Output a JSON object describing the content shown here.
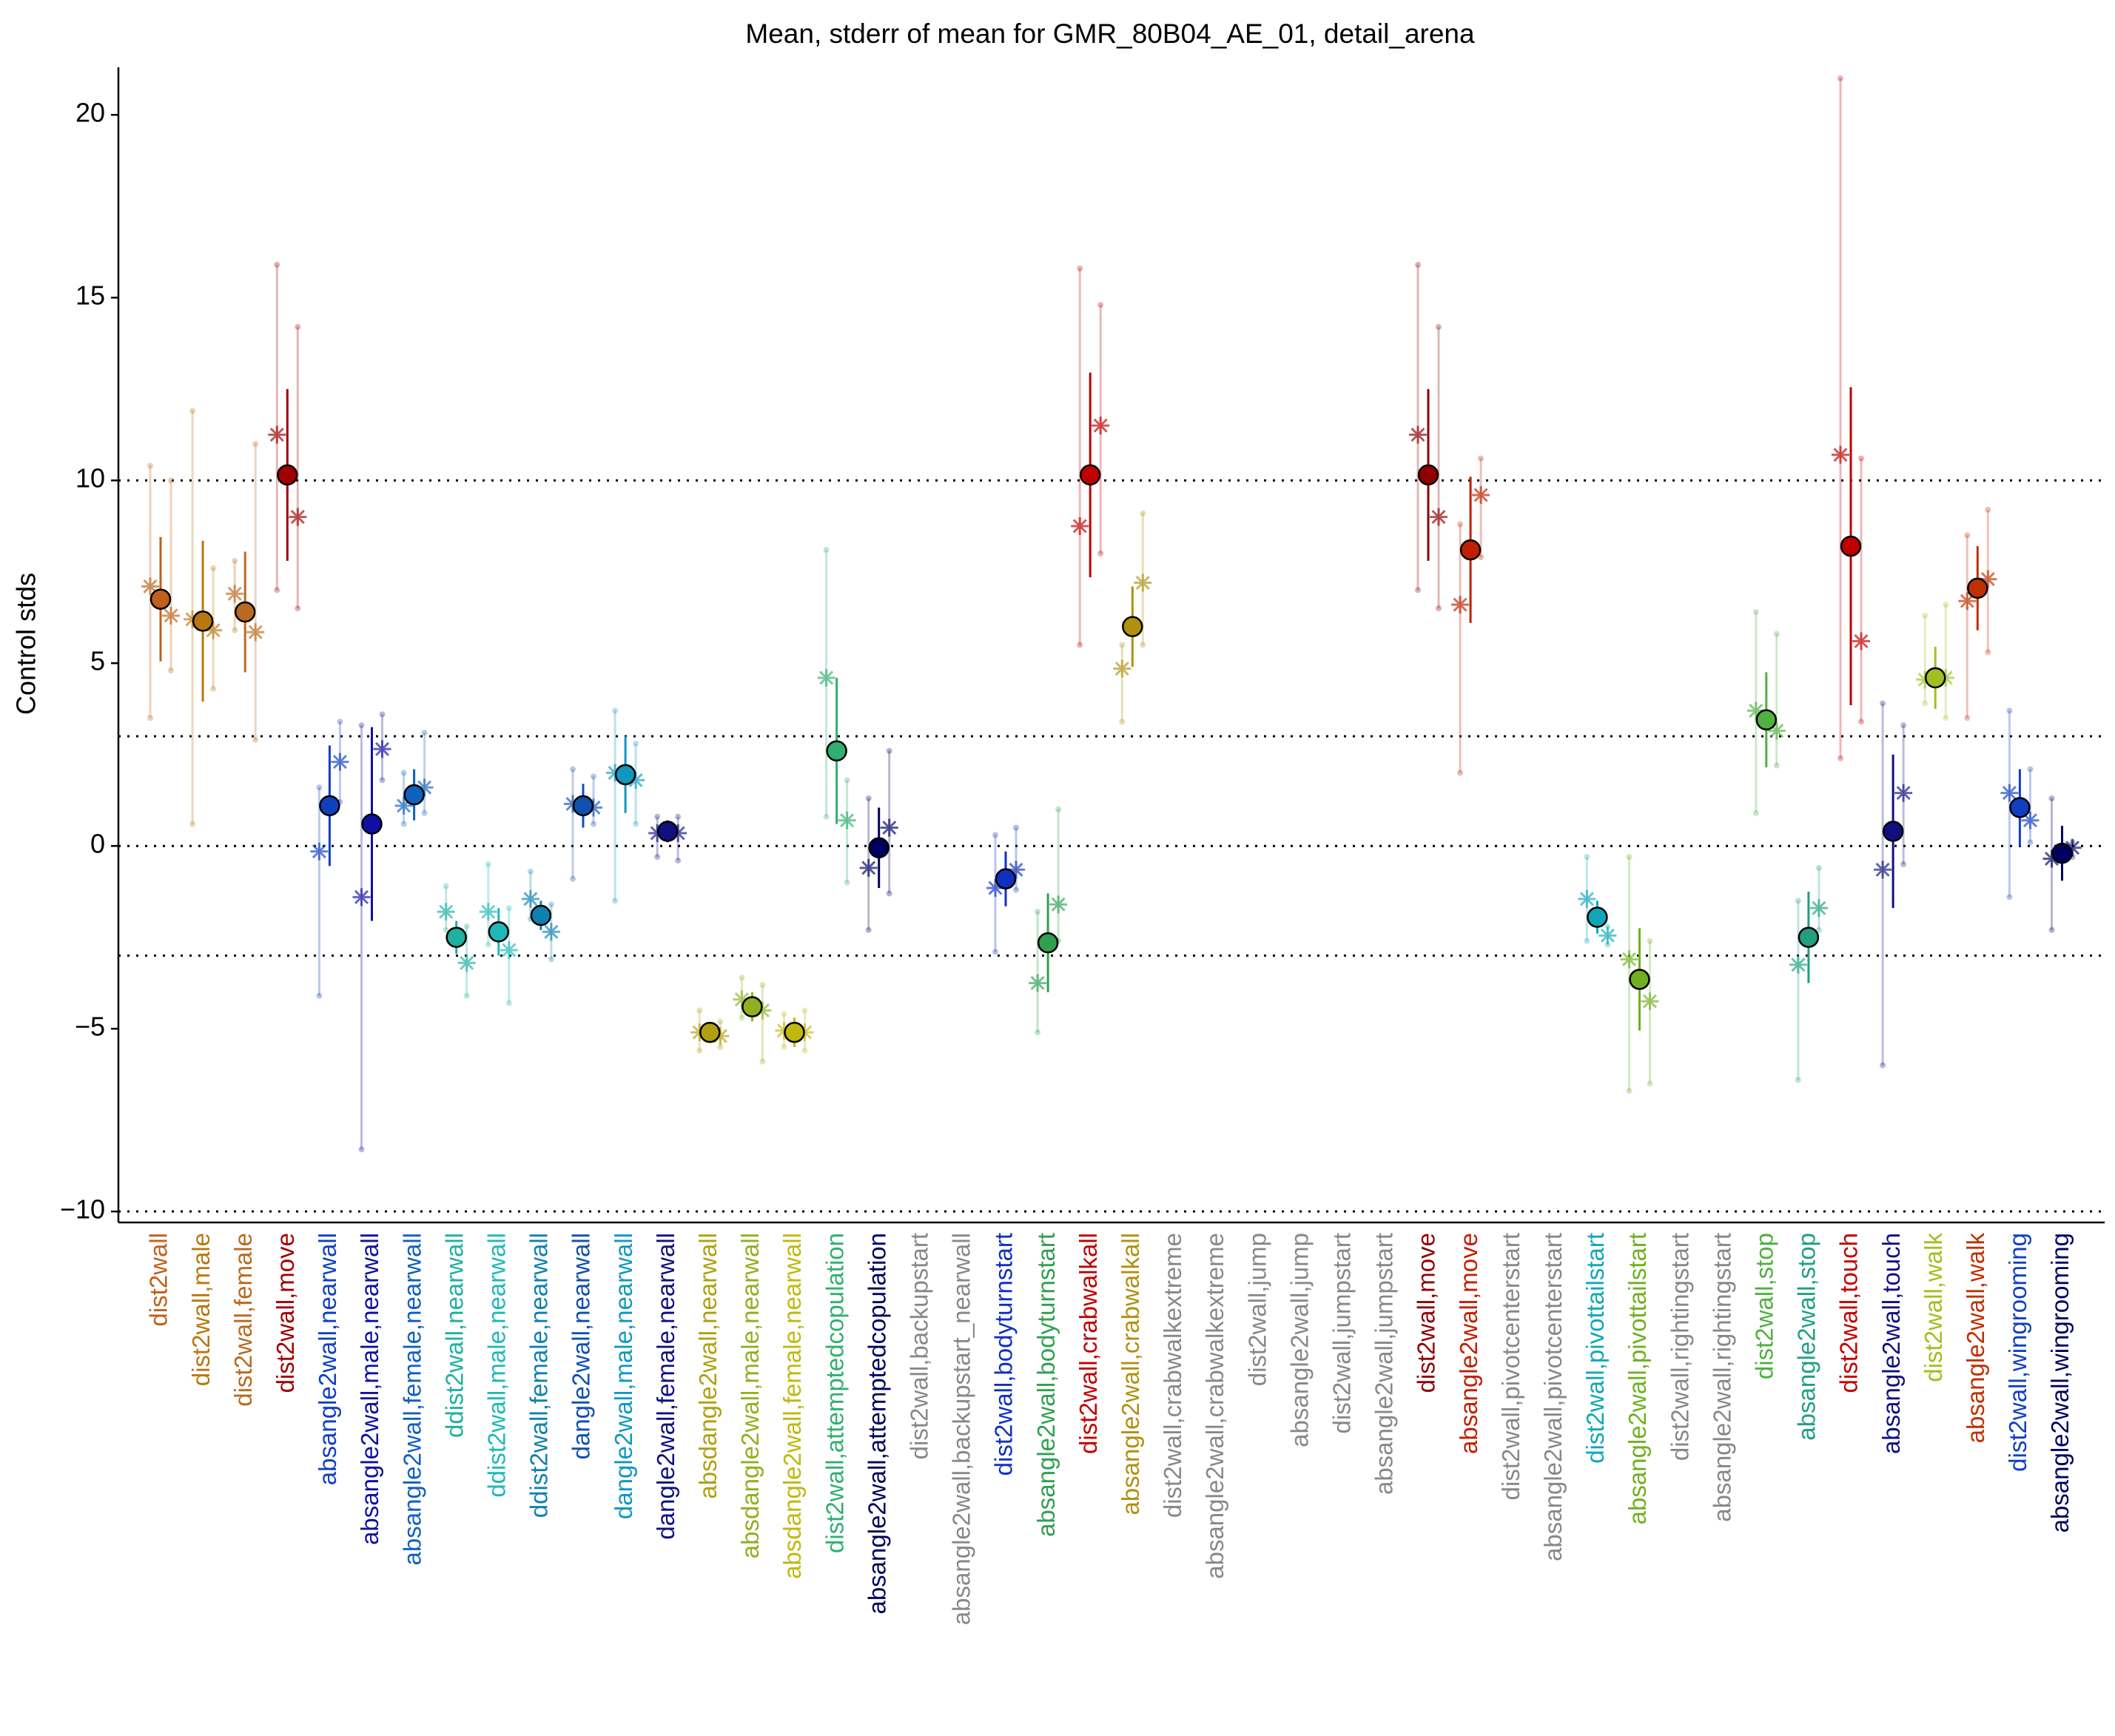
{
  "chart_data": {
    "type": "dotplot",
    "title": "Mean, stderr of mean for GMR_80B04_AE_01, detail_arena",
    "y_label": "Control stds",
    "ylim": [
      -10.3,
      21.3
    ],
    "yticks": [
      {
        "value": -10,
        "label": "−10"
      },
      {
        "value": -5,
        "label": "−5"
      },
      0,
      5,
      10,
      15,
      20
    ],
    "hlines": [
      -10,
      -3,
      0,
      3,
      10
    ],
    "categories": [
      "dist2wall",
      "dist2wall,male",
      "dist2wall,female",
      "dist2wall,move",
      "absangle2wall,nearwall",
      "absangle2wall,male,nearwall",
      "absangle2wall,female,nearwall",
      "ddist2wall,nearwall",
      "ddist2wall,male,nearwall",
      "ddist2wall,female,nearwall",
      "dangle2wall,nearwall",
      "dangle2wall,male,nearwall",
      "dangle2wall,female,nearwall",
      "absdangle2wall,nearwall",
      "absdangle2wall,male,nearwall",
      "absdangle2wall,female,nearwall",
      "dist2wall,attemptedcopulation",
      "absangle2wall,attemptedcopulation",
      "dist2wall,backupstart",
      "absangle2wall,backupstart_nearwall",
      "dist2wall,bodyturnstart",
      "absangle2wall,bodyturnstart",
      "dist2wall,crabwalkall",
      "absangle2wall,crabwalkall",
      "dist2wall,crabwalkextreme",
      "absangle2wall,crabwalkextreme",
      "dist2wall,jump",
      "absangle2wall,jump",
      "dist2wall,jumpstart",
      "absangle2wall,jumpstart",
      "dist2wall,move",
      "absangle2wall,move",
      "dist2wall,pivotcenterstart",
      "absangle2wall,pivotcenterstart",
      "dist2wall,pivottailstart",
      "absangle2wall,pivottailstart",
      "dist2wall,rightingstart",
      "absangle2wall,rightingstart",
      "dist2wall,stop",
      "absangle2wall,stop",
      "dist2wall,touch",
      "absangle2wall,touch",
      "dist2wall,walk",
      "absangle2wall,walk",
      "dist2wall,wingrooming",
      "absangle2wall,wingrooming"
    ],
    "values": [
      6.75,
      6.15,
      6.4,
      10.15,
      1.1,
      0.6,
      1.4,
      -2.5,
      -2.35,
      -1.9,
      1.1,
      1.95,
      0.4,
      -5.1,
      -4.4,
      -5.1,
      2.6,
      -0.05,
      null,
      null,
      -0.9,
      -2.65,
      10.15,
      6.0,
      null,
      null,
      null,
      null,
      null,
      null,
      10.15,
      8.1,
      null,
      null,
      -1.95,
      -3.65,
      null,
      null,
      3.45,
      -2.5,
      8.2,
      0.4,
      4.6,
      7.05,
      1.05,
      -0.2
    ],
    "errors": [
      1.7,
      2.2,
      1.65,
      2.35,
      1.65,
      2.65,
      0.7,
      0.45,
      0.65,
      0.4,
      0.6,
      1.05,
      0.3,
      0.25,
      0.4,
      0.4,
      2.0,
      1.1,
      null,
      null,
      0.75,
      1.35,
      2.8,
      1.1,
      null,
      null,
      null,
      null,
      null,
      null,
      2.35,
      2.0,
      null,
      null,
      0.45,
      1.4,
      null,
      null,
      1.3,
      1.25,
      4.35,
      2.1,
      0.85,
      1.15,
      1.05,
      0.75
    ],
    "colors": [
      "#c0601a",
      "#b8780f",
      "#b86a20",
      "#a00000",
      "#1040c0",
      "#1010a0",
      "#1060c0",
      "#20b0a0",
      "#20b8b8",
      "#1080b0",
      "#1050b0",
      "#1098c0",
      "#101080",
      "#b0a010",
      "#90b020",
      "#c0b810",
      "#30b070",
      "#000060",
      "#888888",
      "#888888",
      "#1030c0",
      "#30a050",
      "#c00000",
      "#b09010",
      "#888888",
      "#888888",
      "#888888",
      "#888888",
      "#888888",
      "#888888",
      "#900000",
      "#c02000",
      "#888888",
      "#888888",
      "#10a8b8",
      "#70b020",
      "#888888",
      "#888888",
      "#50b040",
      "#20a080",
      "#c00000",
      "#101080",
      "#a0c020",
      "#c03000",
      "#1040c0",
      "#000060"
    ],
    "replicates": [
      [
        7.1,
        6.3
      ],
      [
        6.2,
        5.9
      ],
      [
        6.9,
        5.85
      ],
      [
        11.25,
        9.0
      ],
      [
        -0.15,
        2.3
      ],
      [
        -1.4,
        2.65
      ],
      [
        1.1,
        1.6
      ],
      [
        -1.8,
        -3.2
      ],
      [
        -1.8,
        -2.85
      ],
      [
        -1.45,
        -2.35
      ],
      [
        1.15,
        1.05
      ],
      [
        2.0,
        1.8
      ],
      [
        0.35,
        0.35
      ],
      [
        -5.1,
        -5.2
      ],
      [
        -4.2,
        -4.5
      ],
      [
        -5.05,
        -5.1
      ],
      [
        4.6,
        0.7
      ],
      [
        -0.6,
        0.5
      ],
      null,
      null,
      [
        -1.15,
        -0.65
      ],
      [
        -3.75,
        -1.6
      ],
      [
        8.75,
        11.5
      ],
      [
        4.85,
        7.2
      ],
      null,
      null,
      null,
      null,
      null,
      null,
      [
        11.25,
        9.0
      ],
      [
        6.6,
        9.6
      ],
      null,
      null,
      [
        -1.45,
        -2.45
      ],
      [
        -3.1,
        -4.25
      ],
      null,
      null,
      [
        3.7,
        3.15
      ],
      [
        -3.25,
        -1.7
      ],
      [
        10.7,
        5.6
      ],
      [
        -0.65,
        1.45
      ],
      [
        4.55,
        4.6
      ],
      [
        6.7,
        7.3
      ],
      [
        1.45,
        0.7
      ],
      [
        -0.35,
        -0.05
      ]
    ],
    "replicate_ranges": [
      [
        [
          3.5,
          10.4
        ],
        [
          4.8,
          10.0
        ]
      ],
      [
        [
          0.6,
          11.9
        ],
        [
          4.3,
          7.6
        ]
      ],
      [
        [
          5.9,
          7.8
        ],
        [
          2.9,
          11.0
        ]
      ],
      [
        [
          7.0,
          15.9
        ],
        [
          6.5,
          14.2
        ]
      ],
      [
        [
          -4.1,
          1.6
        ],
        [
          1.2,
          3.4
        ]
      ],
      [
        [
          -8.3,
          3.3
        ],
        [
          1.8,
          3.6
        ]
      ],
      [
        [
          0.6,
          2.0
        ],
        [
          0.9,
          3.1
        ]
      ],
      [
        [
          -2.3,
          -1.1
        ],
        [
          -4.1,
          -2.2
        ]
      ],
      [
        [
          -2.7,
          -0.5
        ],
        [
          -4.3,
          -1.7
        ]
      ],
      [
        [
          -2.0,
          -0.7
        ],
        [
          -3.1,
          -1.6
        ]
      ],
      [
        [
          -0.9,
          2.1
        ],
        [
          0.6,
          1.9
        ]
      ],
      [
        [
          -1.5,
          3.7
        ],
        [
          0.6,
          2.8
        ]
      ],
      [
        [
          -0.3,
          0.8
        ],
        [
          -0.4,
          0.8
        ]
      ],
      [
        [
          -5.6,
          -4.5
        ],
        [
          -5.5,
          -4.8
        ]
      ],
      [
        [
          -4.7,
          -3.6
        ],
        [
          -5.9,
          -3.8
        ]
      ],
      [
        [
          -5.5,
          -4.6
        ],
        [
          -5.6,
          -4.5
        ]
      ],
      [
        [
          0.8,
          8.1
        ],
        [
          -1.0,
          1.8
        ]
      ],
      [
        [
          -2.3,
          1.3
        ],
        [
          -1.3,
          2.6
        ]
      ],
      null,
      null,
      [
        [
          -2.9,
          0.3
        ],
        [
          -1.2,
          0.5
        ]
      ],
      [
        [
          -5.1,
          -1.8
        ],
        [
          -2.6,
          1.0
        ]
      ],
      [
        [
          5.5,
          15.8
        ],
        [
          8.0,
          14.8
        ]
      ],
      [
        [
          3.4,
          5.5
        ],
        [
          5.5,
          9.1
        ]
      ],
      null,
      null,
      null,
      null,
      null,
      null,
      [
        [
          7.0,
          15.9
        ],
        [
          6.5,
          14.2
        ]
      ],
      [
        [
          2.0,
          8.8
        ],
        [
          7.9,
          10.6
        ]
      ],
      null,
      null,
      [
        [
          -2.6,
          -0.3
        ],
        [
          -2.7,
          -2.2
        ]
      ],
      [
        [
          -6.7,
          -0.3
        ],
        [
          -6.5,
          -2.6
        ]
      ],
      null,
      null,
      [
        [
          0.9,
          6.4
        ],
        [
          2.2,
          5.8
        ]
      ],
      [
        [
          -6.4,
          -1.5
        ],
        [
          -2.3,
          -0.6
        ]
      ],
      [
        [
          2.4,
          21.0
        ],
        [
          3.4,
          10.6
        ]
      ],
      [
        [
          -6.0,
          3.9
        ],
        [
          -0.5,
          3.3
        ]
      ],
      [
        [
          3.9,
          6.3
        ],
        [
          3.5,
          6.6
        ]
      ],
      [
        [
          3.5,
          8.5
        ],
        [
          5.3,
          9.2
        ]
      ],
      [
        [
          -1.4,
          3.7
        ],
        [
          0.1,
          2.1
        ]
      ],
      [
        [
          -2.3,
          1.3
        ],
        [
          -0.3,
          0.1
        ]
      ]
    ]
  }
}
